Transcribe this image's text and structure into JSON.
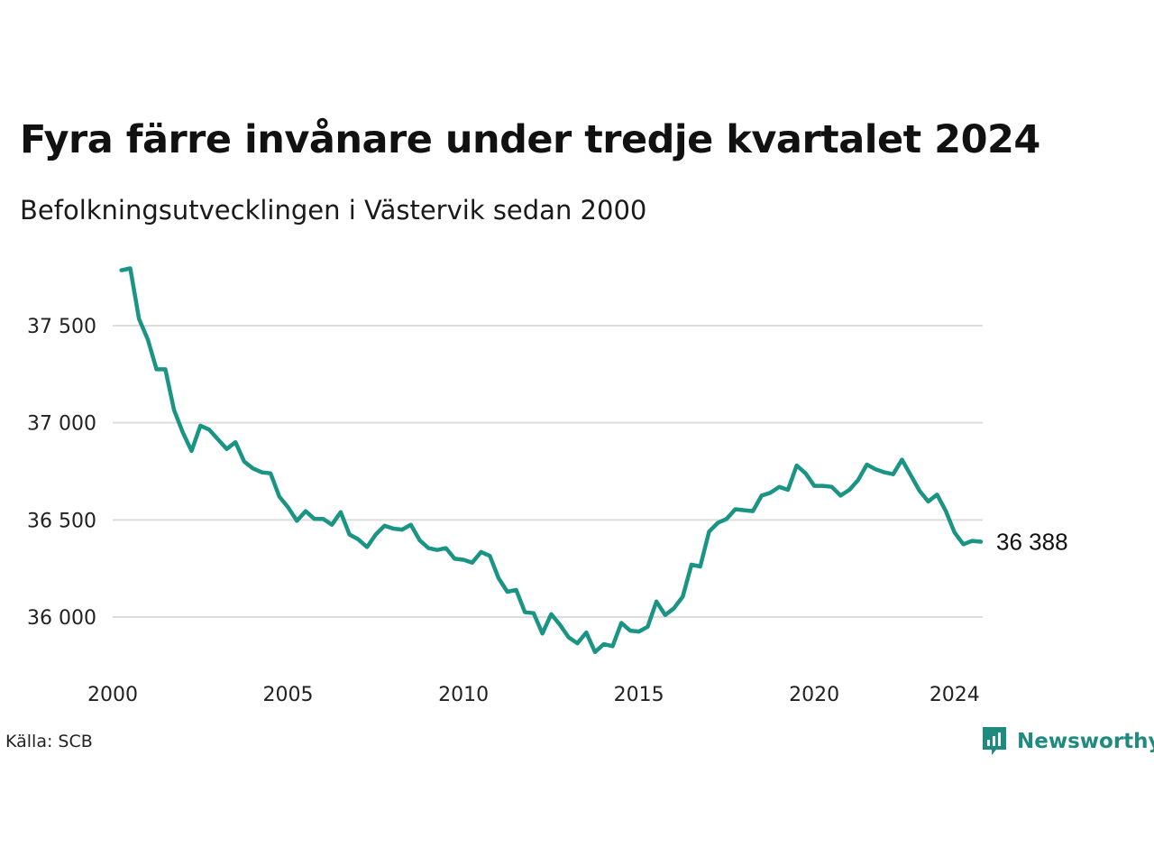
{
  "title": "Fyra färre invånare under tredje kvartalet 2024",
  "subtitle": "Befolkningsutvecklingen i Västervik sedan 2000",
  "source": "Källa: SCB",
  "brand": {
    "name": "Newsworthy",
    "icon": "newsworthy-logo-icon",
    "color": "#1f8a7e"
  },
  "colors": {
    "line": "#1a9484",
    "grid": "#dddddd"
  },
  "chart_data": {
    "type": "line",
    "title": "Fyra färre invånare under tredje kvartalet 2024",
    "subtitle": "Befolkningsutvecklingen i Västervik sedan 2000",
    "xlabel": "",
    "ylabel": "",
    "xlim": [
      2000,
      2024.75
    ],
    "ylim": [
      35800,
      37820
    ],
    "grid": true,
    "y_ticks": [
      {
        "value": 36000,
        "label": "36 000"
      },
      {
        "value": 36500,
        "label": "36 500"
      },
      {
        "value": 37000,
        "label": "37 000"
      },
      {
        "value": 37500,
        "label": "37 500"
      }
    ],
    "x_ticks": [
      {
        "value": 2000,
        "label": "2000"
      },
      {
        "value": 2005,
        "label": "2005"
      },
      {
        "value": 2010,
        "label": "2010"
      },
      {
        "value": 2015,
        "label": "2015"
      },
      {
        "value": 2020,
        "label": "2020"
      },
      {
        "value": 2024,
        "label": "2024"
      }
    ],
    "end_label": "36 388",
    "x": [
      2000.25,
      2000.5,
      2000.75,
      2001.0,
      2001.25,
      2001.5,
      2001.75,
      2002.0,
      2002.25,
      2002.5,
      2002.75,
      2003.0,
      2003.25,
      2003.5,
      2003.75,
      2004.0,
      2004.25,
      2004.5,
      2004.75,
      2005.0,
      2005.25,
      2005.5,
      2005.75,
      2006.0,
      2006.25,
      2006.5,
      2006.75,
      2007.0,
      2007.25,
      2007.5,
      2007.75,
      2008.0,
      2008.25,
      2008.5,
      2008.75,
      2009.0,
      2009.25,
      2009.5,
      2009.75,
      2010.0,
      2010.25,
      2010.5,
      2010.75,
      2011.0,
      2011.25,
      2011.5,
      2011.75,
      2012.0,
      2012.25,
      2012.5,
      2012.75,
      2013.0,
      2013.25,
      2013.5,
      2013.75,
      2014.0,
      2014.25,
      2014.5,
      2014.75,
      2015.0,
      2015.25,
      2015.5,
      2015.75,
      2016.0,
      2016.25,
      2016.5,
      2016.75,
      2017.0,
      2017.25,
      2017.5,
      2017.75,
      2018.0,
      2018.25,
      2018.5,
      2018.75,
      2019.0,
      2019.25,
      2019.5,
      2019.75,
      2020.0,
      2020.25,
      2020.5,
      2020.75,
      2021.0,
      2021.25,
      2021.5,
      2021.75,
      2022.0,
      2022.25,
      2022.5,
      2022.75,
      2023.0,
      2023.25,
      2023.5,
      2023.75,
      2024.0,
      2024.25,
      2024.5,
      2024.75
    ],
    "series": [
      {
        "values": [
          37785,
          37795,
          37535,
          37430,
          37275,
          37275,
          37065,
          36950,
          36855,
          36985,
          36965,
          36915,
          36865,
          36900,
          36800,
          36765,
          36745,
          36740,
          36620,
          36565,
          36495,
          36545,
          36505,
          36505,
          36475,
          36540,
          36425,
          36400,
          36360,
          36425,
          36470,
          36455,
          36450,
          36475,
          36395,
          36355,
          36345,
          36355,
          36300,
          36295,
          36280,
          36335,
          36315,
          36200,
          36130,
          36140,
          36025,
          36020,
          35915,
          36015,
          35960,
          35895,
          35865,
          35920,
          35820,
          35860,
          35850,
          35970,
          35930,
          35925,
          35950,
          36080,
          36010,
          36045,
          36105,
          36270,
          36260,
          36440,
          36485,
          36505,
          36555,
          36550,
          36545,
          36625,
          36640,
          36670,
          36655,
          36780,
          36740,
          36675,
          36675,
          36670,
          36625,
          36655,
          36705,
          36785,
          36760,
          36745,
          36735,
          36810,
          36730,
          36650,
          36595,
          36630,
          36545,
          36435,
          36375,
          36392,
          36388
        ]
      }
    ]
  }
}
